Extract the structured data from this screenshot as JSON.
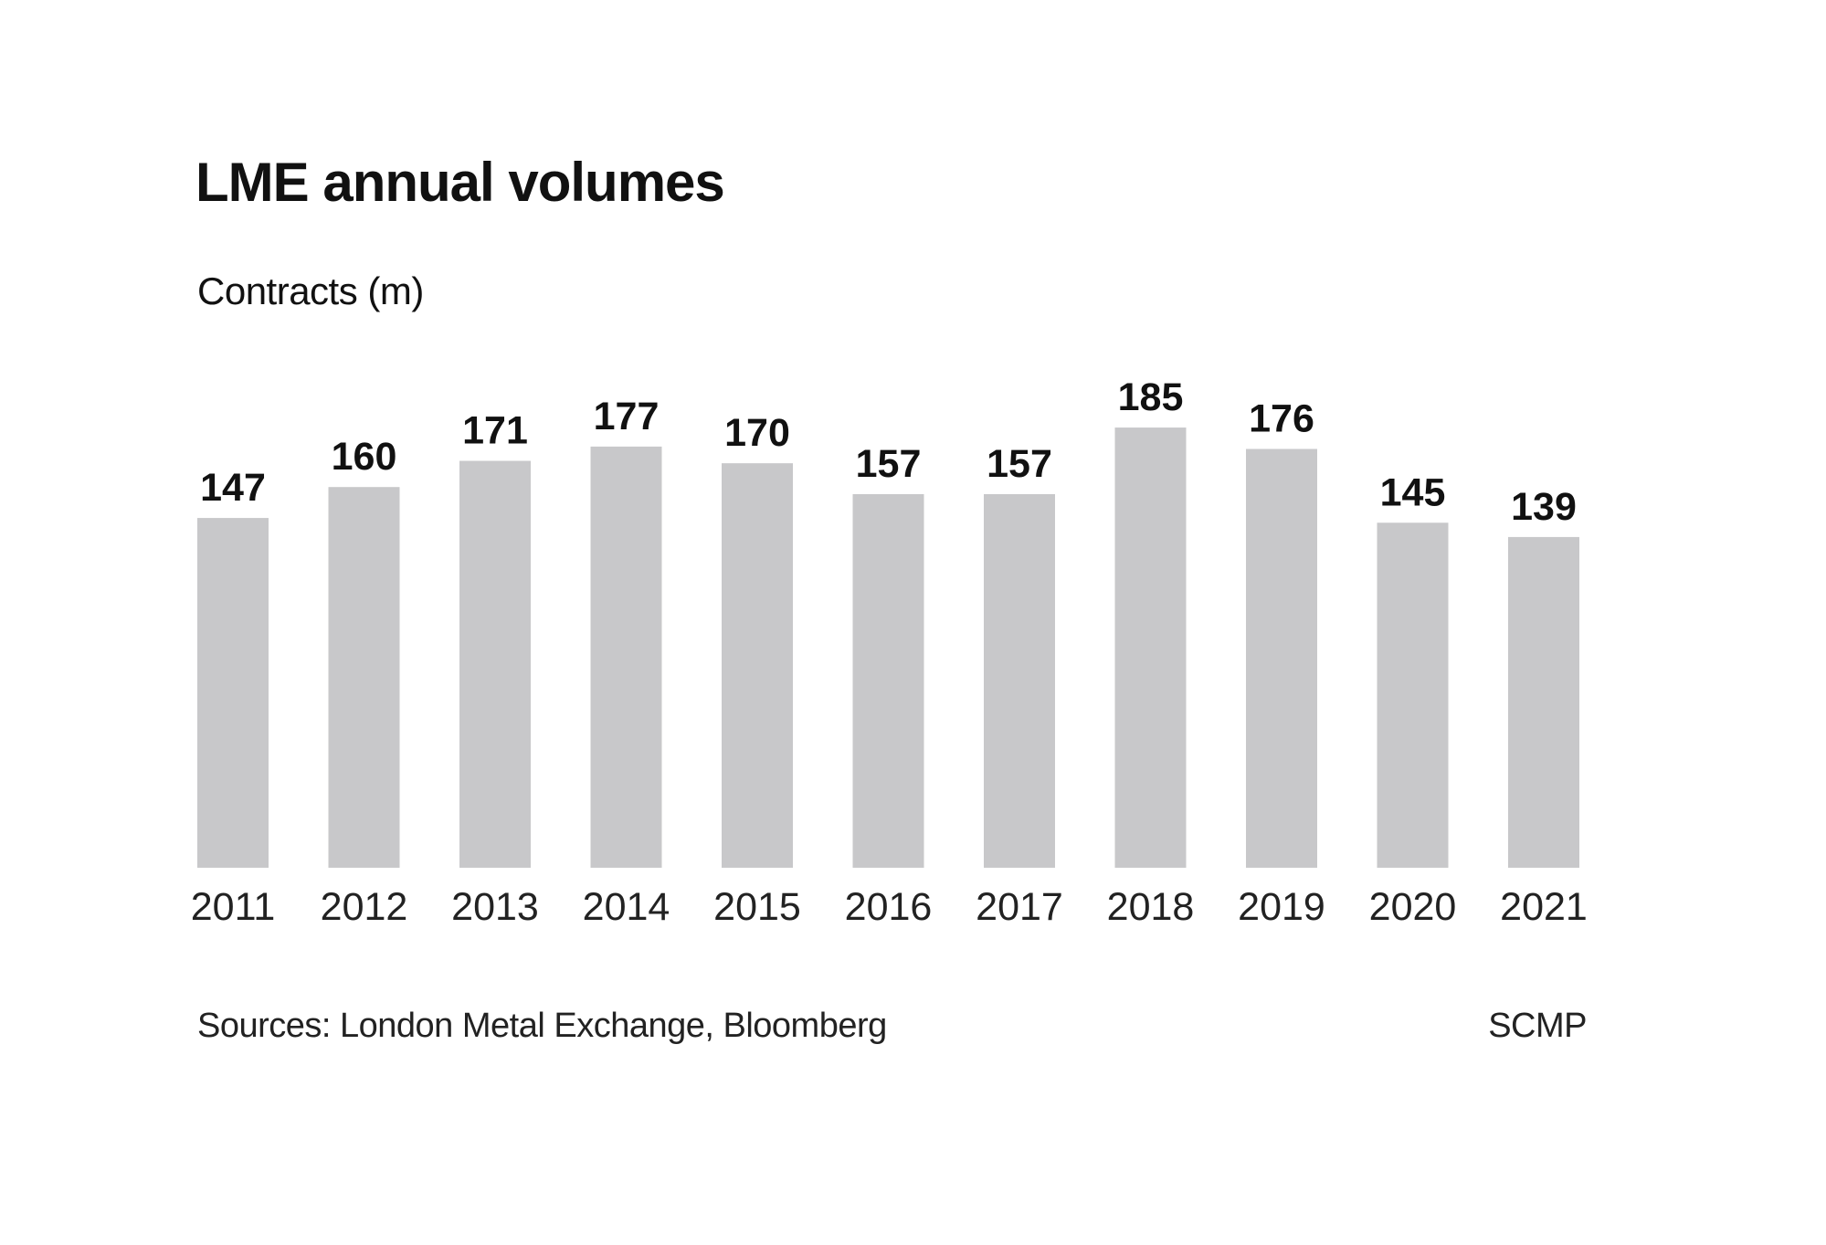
{
  "chart_data": {
    "type": "bar",
    "title": "LME annual volumes",
    "subtitle": "Contracts (m)",
    "categories": [
      "2011",
      "2012",
      "2013",
      "2014",
      "2015",
      "2016",
      "2017",
      "2018",
      "2019",
      "2020",
      "2021"
    ],
    "values": [
      147,
      160,
      171,
      177,
      170,
      157,
      157,
      185,
      176,
      145,
      139
    ],
    "ylim": [
      0,
      185
    ],
    "grid": false,
    "data_labels": true,
    "bar_color": "#c8c8ca",
    "source": "Sources: London Metal Exchange, Bloomberg",
    "credit": "SCMP"
  }
}
